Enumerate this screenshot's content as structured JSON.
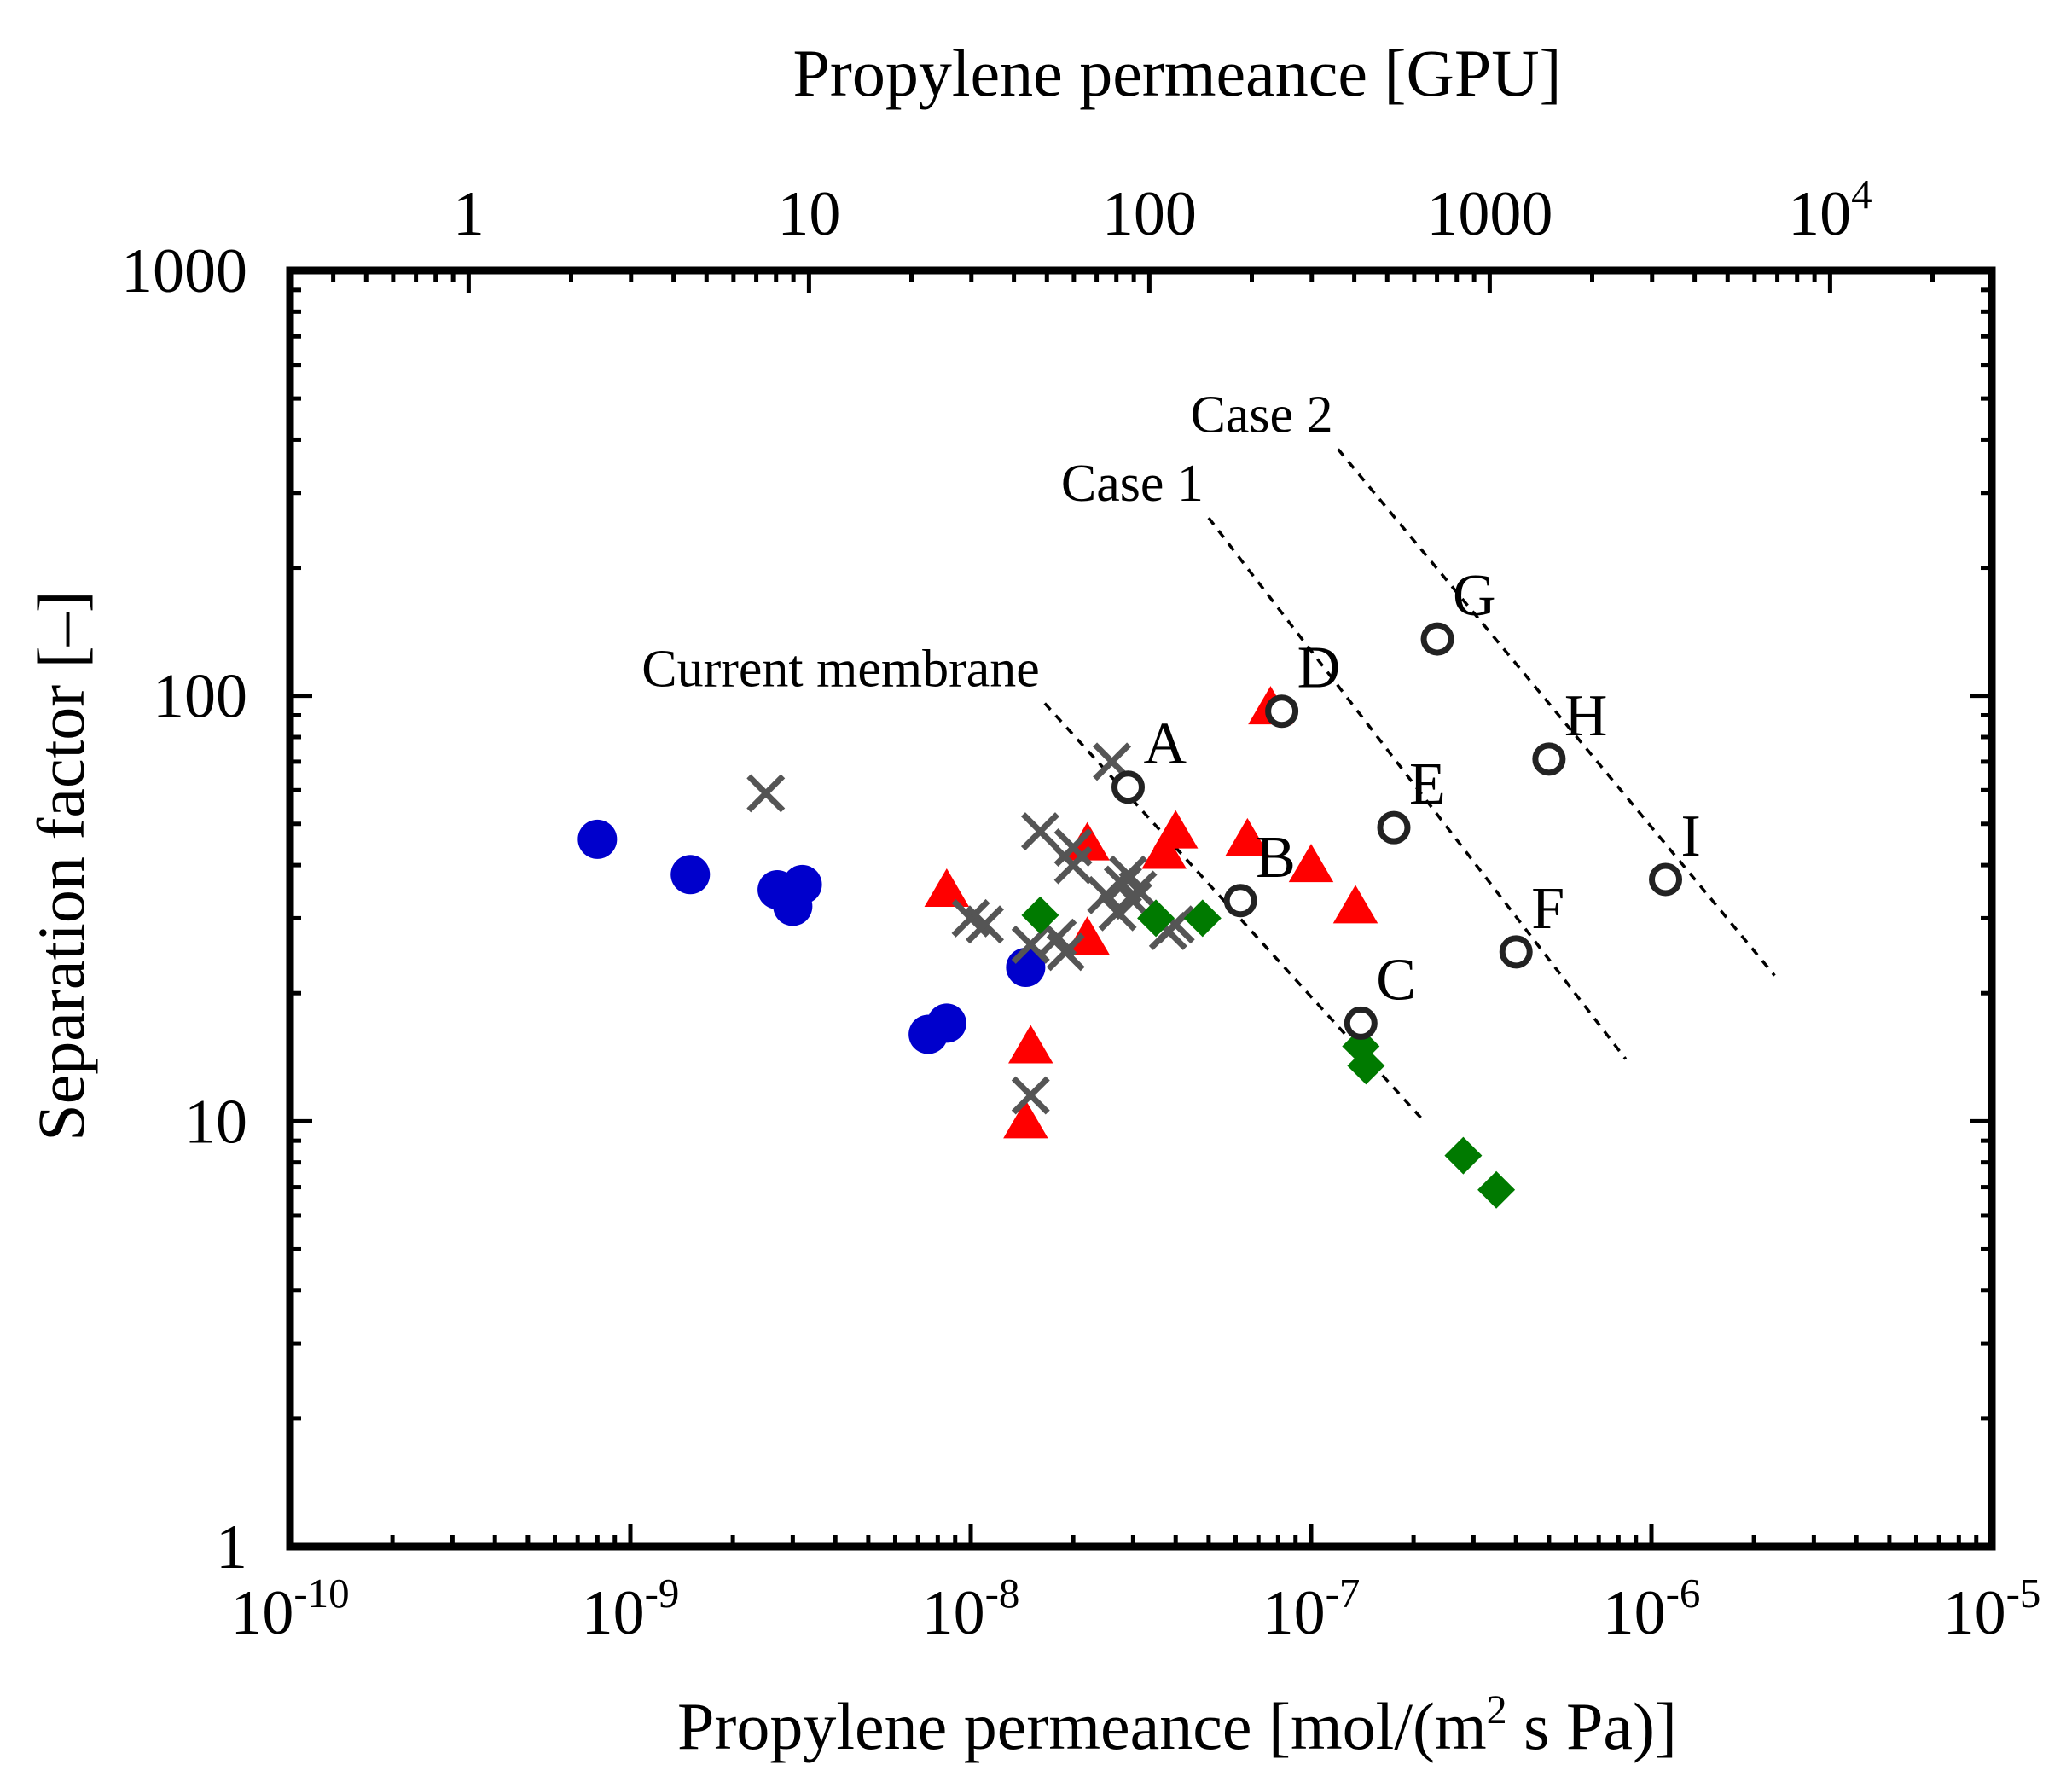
{
  "chart_data": {
    "type": "scatter",
    "title": "",
    "xlabel": "Propylene permeance [mol/(m² s Pa)]",
    "xlabel_parts": {
      "before": "Propylene permeance [mol/(m",
      "sup": "2",
      "after": " s Pa)]"
    },
    "ylabel": "Separation factor [–]",
    "x2label": "Propylene permeance [GPU]",
    "x_scale": "log",
    "y_scale": "log",
    "xlim": [
      1e-10,
      1e-05
    ],
    "ylim": [
      1,
      1000
    ],
    "x_ticks": [
      {
        "value": 1e-10,
        "base": "10",
        "exp": "-10"
      },
      {
        "value": 1e-09,
        "base": "10",
        "exp": "-9"
      },
      {
        "value": 1e-08,
        "base": "10",
        "exp": "-8"
      },
      {
        "value": 1e-07,
        "base": "10",
        "exp": "-7"
      },
      {
        "value": 1e-06,
        "base": "10",
        "exp": "-6"
      },
      {
        "value": 1e-05,
        "base": "10",
        "exp": "-5"
      }
    ],
    "y_ticks": [
      {
        "value": 1,
        "label": "1"
      },
      {
        "value": 10,
        "label": "10"
      },
      {
        "value": 100,
        "label": "100"
      },
      {
        "value": 1000,
        "label": "1000"
      }
    ],
    "x2_gpu_factor": 3.348e-10,
    "x2_ticks": [
      {
        "gpu": 1,
        "base": "1",
        "exp": ""
      },
      {
        "gpu": 10,
        "base": "10",
        "exp": ""
      },
      {
        "gpu": 100,
        "base": "100",
        "exp": ""
      },
      {
        "gpu": 1000,
        "base": "1000",
        "exp": ""
      },
      {
        "gpu": 10000,
        "base": "10",
        "exp": "4"
      }
    ],
    "series": [
      {
        "name": "blue-circles",
        "marker": "circle",
        "color": "#0000cc",
        "points": [
          {
            "x": 8e-10,
            "y": 46
          },
          {
            "x": 1.5e-09,
            "y": 38
          },
          {
            "x": 2.7e-09,
            "y": 35
          },
          {
            "x": 3e-09,
            "y": 32
          },
          {
            "x": 3.2e-09,
            "y": 36
          },
          {
            "x": 7.5e-09,
            "y": 16
          },
          {
            "x": 8.5e-09,
            "y": 17
          },
          {
            "x": 1.45e-08,
            "y": 23
          }
        ]
      },
      {
        "name": "red-triangles",
        "marker": "triangle",
        "color": "#ff0000",
        "points": [
          {
            "x": 8.5e-09,
            "y": 35
          },
          {
            "x": 1.5e-08,
            "y": 15
          },
          {
            "x": 1.45e-08,
            "y": 10
          },
          {
            "x": 2.2e-08,
            "y": 27
          },
          {
            "x": 2.2e-08,
            "y": 45
          },
          {
            "x": 3.7e-08,
            "y": 43
          },
          {
            "x": 4e-08,
            "y": 48
          },
          {
            "x": 6.5e-08,
            "y": 46
          },
          {
            "x": 7.6e-08,
            "y": 94
          },
          {
            "x": 1e-07,
            "y": 40
          },
          {
            "x": 1.35e-07,
            "y": 32
          }
        ]
      },
      {
        "name": "gray-crosses",
        "marker": "cross",
        "color": "#555555",
        "points": [
          {
            "x": 2.5e-09,
            "y": 59
          },
          {
            "x": 1e-08,
            "y": 30
          },
          {
            "x": 1.1e-08,
            "y": 29
          },
          {
            "x": 1.5e-08,
            "y": 11.5
          },
          {
            "x": 1.5e-08,
            "y": 26
          },
          {
            "x": 1.6e-08,
            "y": 48
          },
          {
            "x": 1.8e-08,
            "y": 27
          },
          {
            "x": 1.9e-08,
            "y": 25
          },
          {
            "x": 2e-08,
            "y": 44
          },
          {
            "x": 2e-08,
            "y": 40
          },
          {
            "x": 2.6e-08,
            "y": 70
          },
          {
            "x": 2.5e-08,
            "y": 34
          },
          {
            "x": 2.7e-08,
            "y": 31
          },
          {
            "x": 2.8e-08,
            "y": 36
          },
          {
            "x": 2.9e-08,
            "y": 38
          },
          {
            "x": 3e-08,
            "y": 33
          },
          {
            "x": 3.1e-08,
            "y": 35
          },
          {
            "x": 3.8e-08,
            "y": 28
          },
          {
            "x": 4e-08,
            "y": 29
          }
        ]
      },
      {
        "name": "green-diamonds",
        "marker": "diamond",
        "color": "#007a00",
        "points": [
          {
            "x": 1.6e-08,
            "y": 30.5
          },
          {
            "x": 3.5e-08,
            "y": 30
          },
          {
            "x": 4.8e-08,
            "y": 30
          },
          {
            "x": 1.4e-07,
            "y": 15
          },
          {
            "x": 1.45e-07,
            "y": 13.5
          },
          {
            "x": 2.8e-07,
            "y": 8.3
          },
          {
            "x": 3.5e-07,
            "y": 6.9
          }
        ]
      }
    ],
    "open_points": [
      {
        "label": "A",
        "x": 2.9e-08,
        "y": 61
      },
      {
        "label": "B",
        "x": 6.2e-08,
        "y": 33
      },
      {
        "label": "C",
        "x": 1.4e-07,
        "y": 17
      },
      {
        "label": "D",
        "x": 8.2e-08,
        "y": 92
      },
      {
        "label": "E",
        "x": 1.75e-07,
        "y": 49
      },
      {
        "label": "F",
        "x": 4e-07,
        "y": 25
      },
      {
        "label": "G",
        "x": 2.35e-07,
        "y": 136
      },
      {
        "label": "H",
        "x": 5e-07,
        "y": 71
      },
      {
        "label": "I",
        "x": 1.1e-06,
        "y": 37
      }
    ],
    "trend_lines": [
      {
        "label": "Current membrane",
        "x": [
          1.65e-08,
          2.1e-07
        ],
        "y": [
          96,
          10.2
        ]
      },
      {
        "label": "Case 1",
        "x": [
          5e-08,
          8.4e-07
        ],
        "y": [
          262,
          14
        ]
      },
      {
        "label": "Case 2",
        "x": [
          1.2e-07,
          2.3e-06
        ],
        "y": [
          380,
          22
        ]
      }
    ]
  }
}
